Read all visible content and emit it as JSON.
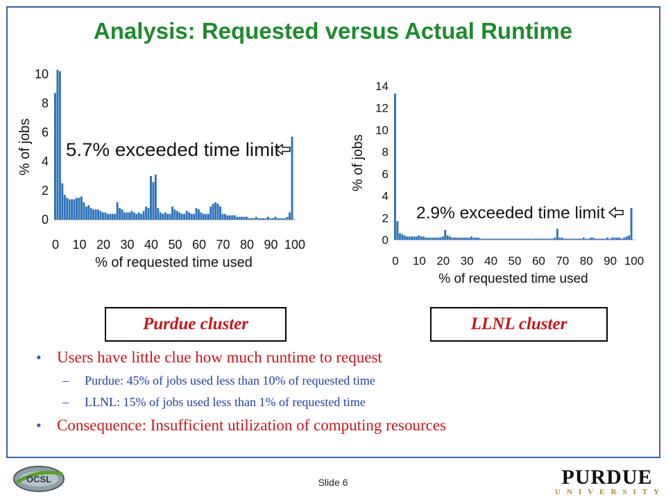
{
  "slide": {
    "title": "Analysis: Requested versus Actual Runtime",
    "slide_number": "Slide 6",
    "logo_right_word": "PURDUE",
    "logo_right_sub": "UNIVERSITY",
    "logo_left": "OCSL"
  },
  "captions": {
    "left": "Purdue cluster",
    "right": "LLNL cluster"
  },
  "bullets": [
    {
      "level": 1,
      "text": "Users have little clue how much runtime to request"
    },
    {
      "level": 2,
      "text": "Purdue: 45% of jobs used less than 10% of requested time"
    },
    {
      "level": 2,
      "text": "LLNL: 15% of jobs used less than 1% of requested time"
    },
    {
      "level": 1,
      "text": "Consequence: Insufficient utilization of computing resources"
    }
  ],
  "colors": {
    "title": "#1e8a2c",
    "bar": "#2e72b8",
    "bullet_l1": "#c8141b",
    "bullet_l2": "#1f3fa8",
    "frame": "#3a5fa8"
  },
  "chart_data": [
    {
      "type": "bar",
      "xlabel": "% of requested time used",
      "ylabel": "% of jobs",
      "ylim": [
        0,
        10
      ],
      "yticks": [
        "0",
        "2",
        "4",
        "6",
        "8",
        "10"
      ],
      "xticks": [
        "0",
        "10",
        "20",
        "30",
        "40",
        "50",
        "60",
        "70",
        "80",
        "90",
        "100"
      ],
      "annotation": "5.7% exceeded time limit",
      "x": [
        1,
        2,
        3,
        4,
        5,
        6,
        7,
        8,
        9,
        10,
        11,
        12,
        13,
        14,
        15,
        16,
        17,
        18,
        19,
        20,
        21,
        22,
        23,
        24,
        25,
        26,
        27,
        28,
        29,
        30,
        31,
        32,
        33,
        34,
        35,
        36,
        37,
        38,
        39,
        40,
        41,
        42,
        43,
        44,
        45,
        46,
        47,
        48,
        49,
        50,
        51,
        52,
        53,
        54,
        55,
        56,
        57,
        58,
        59,
        60,
        61,
        62,
        63,
        64,
        65,
        66,
        67,
        68,
        69,
        70,
        71,
        72,
        73,
        74,
        75,
        76,
        77,
        78,
        79,
        80,
        81,
        82,
        83,
        84,
        85,
        86,
        87,
        88,
        89,
        90,
        91,
        92,
        93,
        94,
        95,
        96,
        97,
        98,
        99,
        100
      ],
      "values": [
        8.7,
        10.3,
        10.2,
        2.5,
        1.7,
        1.5,
        1.4,
        1.4,
        1.4,
        1.5,
        1.5,
        1.6,
        1.2,
        0.9,
        1.0,
        0.8,
        0.7,
        0.7,
        0.7,
        0.6,
        0.5,
        0.5,
        0.4,
        0.4,
        0.4,
        0.4,
        1.2,
        0.8,
        0.7,
        0.5,
        0.5,
        0.5,
        0.6,
        0.5,
        0.4,
        0.5,
        0.4,
        0.6,
        0.9,
        0.8,
        3.0,
        2.6,
        3.1,
        0.8,
        0.5,
        0.4,
        0.5,
        0.4,
        0.4,
        0.9,
        0.7,
        0.6,
        0.5,
        0.4,
        0.4,
        0.6,
        0.5,
        0.4,
        0.4,
        0.8,
        0.7,
        0.5,
        0.4,
        0.4,
        0.4,
        0.9,
        1.1,
        1.2,
        1.1,
        0.9,
        0.4,
        0.4,
        0.3,
        0.3,
        0.3,
        0.3,
        0.2,
        0.2,
        0.2,
        0.2,
        0.2,
        0.1,
        0.1,
        0.1,
        0.2,
        0.1,
        0.1,
        0.1,
        0.1,
        0.2,
        0.1,
        0.1,
        0.2,
        0.1,
        0.1,
        0.1,
        0.1,
        0.2,
        0.5,
        5.7
      ]
    },
    {
      "type": "bar",
      "xlabel": "% of requested time used",
      "ylabel": "% of jobs",
      "ylim": [
        0,
        14
      ],
      "yticks": [
        "0",
        "2",
        "4",
        "6",
        "8",
        "10",
        "12",
        "14"
      ],
      "xticks": [
        "0",
        "10",
        "20",
        "30",
        "40",
        "50",
        "60",
        "70",
        "80",
        "90",
        "100"
      ],
      "annotation": "2.9% exceeded time limit",
      "x": [
        1,
        2,
        3,
        4,
        5,
        6,
        7,
        8,
        9,
        10,
        11,
        12,
        13,
        14,
        15,
        16,
        17,
        18,
        19,
        20,
        21,
        22,
        23,
        24,
        25,
        26,
        27,
        28,
        29,
        30,
        31,
        32,
        33,
        34,
        35,
        36,
        37,
        38,
        39,
        40,
        41,
        42,
        43,
        44,
        45,
        46,
        47,
        48,
        49,
        50,
        51,
        52,
        53,
        54,
        55,
        56,
        57,
        58,
        59,
        60,
        61,
        62,
        63,
        64,
        65,
        66,
        67,
        68,
        69,
        70,
        71,
        72,
        73,
        74,
        75,
        76,
        77,
        78,
        79,
        80,
        81,
        82,
        83,
        84,
        85,
        86,
        87,
        88,
        89,
        90,
        91,
        92,
        93,
        94,
        95,
        96,
        97,
        98,
        99,
        100
      ],
      "values": [
        13.3,
        1.7,
        0.6,
        0.5,
        0.4,
        0.3,
        0.3,
        0.3,
        0.3,
        0.3,
        0.4,
        0.3,
        0.3,
        0.2,
        0.2,
        0.2,
        0.2,
        0.2,
        0.2,
        0.2,
        0.3,
        0.9,
        0.4,
        0.3,
        0.2,
        0.2,
        0.2,
        0.2,
        0.2,
        0.2,
        0.2,
        0.2,
        0.3,
        0.2,
        0.2,
        0.2,
        0.1,
        0.1,
        0.1,
        0.1,
        0.1,
        0.1,
        0.1,
        0.1,
        0.1,
        0.1,
        0.1,
        0.1,
        0.1,
        0.1,
        0.1,
        0.1,
        0.1,
        0.1,
        0.1,
        0.1,
        0.1,
        0.1,
        0.1,
        0.1,
        0.1,
        0.1,
        0.1,
        0.1,
        0.1,
        0.1,
        0.1,
        0.2,
        1.0,
        0.2,
        0.2,
        0.1,
        0.1,
        0.1,
        0.1,
        0.1,
        0.1,
        0.1,
        0.1,
        0.2,
        0.1,
        0.1,
        0.2,
        0.2,
        0.1,
        0.1,
        0.1,
        0.1,
        0.1,
        0.2,
        0.1,
        0.2,
        0.2,
        0.2,
        0.2,
        0.1,
        0.2,
        0.3,
        0.4,
        2.9
      ]
    }
  ]
}
